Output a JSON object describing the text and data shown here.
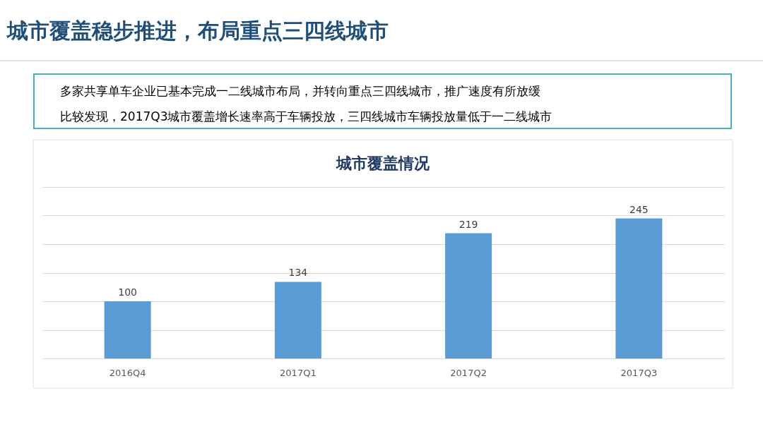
{
  "chart_data": {
    "type": "bar",
    "title": "城市覆盖稳步推进，布局重点三四线城市",
    "subtitle": "城市覆盖情况",
    "annotations": [
      "多家共享单车企业已基本完成一二线城市布局，并转向重点三四线城市，推广速度有所放缓",
      "比较发现，2017Q3城市覆盖增长速率高于车辆投放，三四线城市车辆投放量低于一二线城市"
    ],
    "categories": [
      "2016Q4",
      "2017Q1",
      "2017Q2",
      "2017Q3"
    ],
    "values": [
      100,
      134,
      219,
      245
    ],
    "color": "#5b9bd5",
    "ylim": [
      0,
      300
    ],
    "yticks": [
      {
        "value": 0,
        "label": null
      },
      {
        "value": 50,
        "label": null
      },
      {
        "value": 100,
        "label": null
      },
      {
        "value": 150,
        "label": null
      },
      {
        "value": 200,
        "label": null
      },
      {
        "value": 250,
        "label": null
      },
      {
        "value": 300,
        "label": null
      }
    ],
    "tick_labels": "x",
    "grid": "y",
    "data_labels": true
  }
}
